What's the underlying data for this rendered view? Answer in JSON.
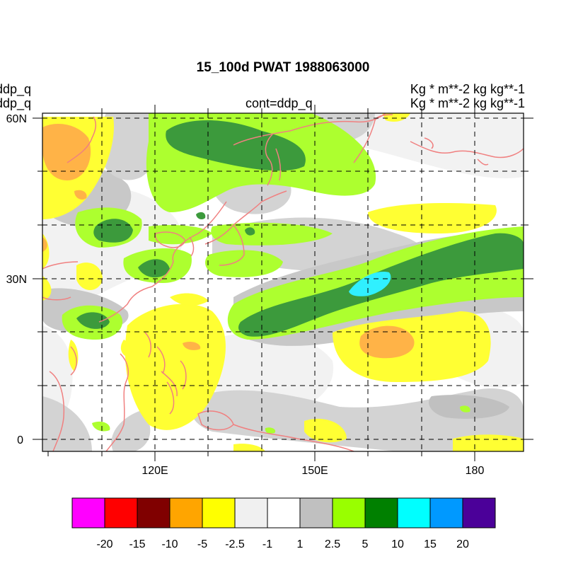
{
  "map": {
    "title": "15_100d PWAT  1988063000",
    "left_labels": [
      "ddp_q",
      "ddp_q"
    ],
    "center_subtitle": "cont=ddp_q",
    "right_labels": [
      "Kg  * m**-2 kg kg**-1",
      "Kg  * m**-2 kg kg**-1"
    ],
    "lon_ticks": [
      "120E",
      "150E",
      "180"
    ],
    "lat_ticks": [
      "60N",
      "30N",
      "0"
    ]
  },
  "colorbar": {
    "colors": [
      "#ff00ff",
      "#ff0000",
      "#800000",
      "#ffa500",
      "#ffff00",
      "#f0f0f0",
      "#ffffff",
      "#c0c0c0",
      "#99ff00",
      "#008000",
      "#00ffff",
      "#0099ff",
      "#4b0099"
    ],
    "labels": [
      "-20",
      "-15",
      "-10",
      "-5",
      "-2.5",
      "-1",
      "1",
      "2.5",
      "5",
      "10",
      "15",
      "20"
    ]
  },
  "palette": {
    "coastline": "#f08080",
    "light_green": "#adff2f",
    "dark_green": "#3c9a3c",
    "cyan": "#30f0ff",
    "yellow": "#ffff33",
    "orange": "#ffb347",
    "light_gray": "#d3d3d3",
    "very_light_gray": "#f2f2f2"
  }
}
